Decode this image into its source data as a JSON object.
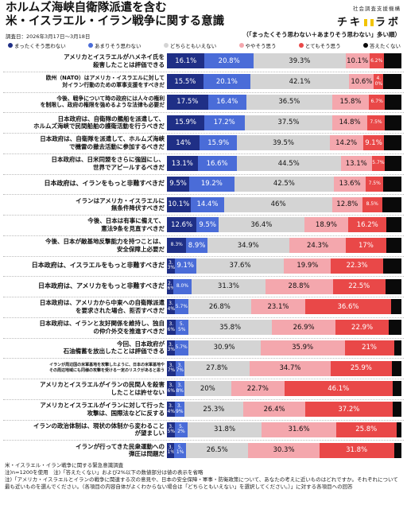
{
  "header": {
    "title_lines": [
      "ホルムズ海峡自衛隊派遣を含む",
      "米・イスラエル・イラン戦争に関する意識"
    ],
    "date": "調査日：2026年3月17日〜3月18日",
    "org": "社会調査支援機構",
    "brand_left": "チキ",
    "brand_right": "ラボ",
    "sort_note": "（「まったくそう思わない＋あまりそう思わない」多い順）"
  },
  "colors": {
    "strongly_disagree": "#1f2f86",
    "somewhat_disagree": "#4a6cd8",
    "neutral": "#d4d4d4",
    "somewhat_agree": "#f4a7ad",
    "strongly_agree": "#e94848",
    "no_answer": "#0a0a0a"
  },
  "chart_data": {
    "type": "bar",
    "orientation": "horizontal",
    "stacked": true,
    "legend": [
      "まったくそう思わない",
      "あまりそう思わない",
      "どちらともいえない",
      "ややそう思う",
      "とてもそう思う",
      "答えたくない"
    ],
    "categories": [
      [
        "アメリカとイスラエルがハメネイ氏を",
        "殺害したことは評価できる"
      ],
      [
        "欧州（NATO）はアメリカ・イスラエルに対して",
        "対イラン行動のための軍事支援をすべきだ"
      ],
      [
        "今後、戦争について時の政府には人々の権利",
        "を制限し、政府の権限を強めるような法律も必要だ"
      ],
      [
        "日本政府は、自衛隊の艦船を派遣して、",
        "ホルムズ海峡で民間船舶の護衛活動を行うべきだ"
      ],
      [
        "日本政府は、自衛隊を派遣して、ホルムズ海峡",
        "で機雷の撤去活動に参加するべきだ"
      ],
      [
        "日本政府は、日米同盟をさらに強固にし、",
        "世界でアピールするべきだ"
      ],
      [
        "日本政府は、イランをもっと非難すべきだ"
      ],
      [
        "イランはアメリカ・イスラエルに",
        "無条件降伏すべきだ"
      ],
      [
        "今後、日本は有事に備えて、",
        "憲法9条を見直すべきだ"
      ],
      [
        "今後、日本が敵基地反撃能力を持つことは、",
        "安全保障上必要だ"
      ],
      [
        "日本政府は、イスラエルをもっと非難すべきだ"
      ],
      [
        "日本政府は、アメリカをもっと非難すべきだ"
      ],
      [
        "日本政府は、アメリカから中東への自衛隊派遣",
        "を要求された場合、拒否すべきだ"
      ],
      [
        "日本政府は、イランと友好関係を維持し、独自",
        "の仲介外交を推進すべきだ"
      ],
      [
        "今回、日本政府が",
        "石油備蓄を放出したことは評価できる"
      ],
      [
        "イランが周辺国の米軍基地を攻撃したように、日本の米軍基地や",
        "その周辺地域にも同様の攻撃を受ける一定のリスクがあると思う"
      ],
      [
        "アメリカとイスラエルがイランの民間人を殺害",
        "したことは許せない"
      ],
      [
        "アメリカとイスラエルがイランに対して行った",
        "攻撃は、国際法などに反する"
      ],
      [
        "イランの政治体制は、現状の体制から変わること",
        "が望ましい"
      ],
      [
        "イランが行ってきた民衆運動への",
        "弾圧は問題だ"
      ]
    ],
    "series": [
      {
        "name": "まったくそう思わない",
        "values": [
          16.1,
          15.5,
          17.5,
          15.9,
          14.0,
          13.1,
          9.5,
          10.1,
          12.6,
          8.3,
          3.3,
          2.6,
          3.4,
          3.6,
          3.3,
          3.7,
          3.6,
          3.4,
          3.5,
          3.1
        ]
      },
      {
        "name": "あまりそう思わない",
        "values": [
          20.8,
          20.1,
          16.4,
          17.2,
          15.9,
          16.6,
          19.2,
          14.4,
          9.5,
          8.9,
          9.1,
          8.0,
          5.7,
          5.5,
          5.7,
          3.7,
          3.8,
          3.9,
          5.2,
          5.1
        ]
      },
      {
        "name": "どちらともいえない",
        "values": [
          39.3,
          42.1,
          36.5,
          37.5,
          39.5,
          44.5,
          42.5,
          46.0,
          36.4,
          34.9,
          37.6,
          31.3,
          26.8,
          35.8,
          30.9,
          27.8,
          20.0,
          25.3,
          31.8,
          26.5
        ]
      },
      {
        "name": "ややそう思う",
        "values": [
          10.1,
          10.6,
          15.8,
          14.8,
          14.2,
          13.1,
          13.6,
          12.8,
          18.9,
          24.3,
          19.9,
          28.8,
          23.1,
          26.9,
          35.9,
          34.7,
          22.7,
          26.4,
          31.6,
          30.3
        ]
      },
      {
        "name": "とてもそう思う",
        "values": [
          6.2,
          4.0,
          6.7,
          7.5,
          9.1,
          5.7,
          7.5,
          8.5,
          16.2,
          17.0,
          22.3,
          22.5,
          36.6,
          22.9,
          21.0,
          25.9,
          46.1,
          37.2,
          25.8,
          31.8
        ]
      },
      {
        "name": "答えたくない",
        "values": [
          7.5,
          7.7,
          7.1,
          7.1,
          7.3,
          7.0,
          7.7,
          8.2,
          6.4,
          6.6,
          7.8,
          6.8,
          4.4,
          5.3,
          3.2,
          4.2,
          3.8,
          3.8,
          2.1,
          3.2
        ]
      }
    ],
    "value_labels": [
      [
        "16.1%",
        "20.8%",
        "39.3%",
        "10.1%",
        "6.2%",
        ""
      ],
      [
        "15.5%",
        "20.1%",
        "42.1%",
        "10.6%",
        "4.0%",
        ""
      ],
      [
        "17.5%",
        "16.4%",
        "36.5%",
        "15.8%",
        "6.7%",
        ""
      ],
      [
        "15.9%",
        "17.2%",
        "37.5%",
        "14.8%",
        "7.5%",
        ""
      ],
      [
        "14%",
        "15.9%",
        "39.5%",
        "14.2%",
        "9.1%",
        ""
      ],
      [
        "13.1%",
        "16.6%",
        "44.5%",
        "13.1%",
        "5.7%",
        ""
      ],
      [
        "9.5%",
        "19.2%",
        "42.5%",
        "13.6%",
        "7.5%",
        ""
      ],
      [
        "10.1%",
        "14.4%",
        "46%",
        "12.8%",
        "8.5%",
        ""
      ],
      [
        "12.6%",
        "9.5%",
        "36.4%",
        "18.9%",
        "16.2%",
        ""
      ],
      [
        "8.3%",
        "8.9%",
        "34.9%",
        "24.3%",
        "17%",
        ""
      ],
      [
        "3.3%",
        "9.1%",
        "37.6%",
        "19.9%",
        "22.3%",
        ""
      ],
      [
        "2.6%",
        "8.0%",
        "31.3%",
        "28.8%",
        "22.5%",
        ""
      ],
      [
        "3.4%",
        "5.7%",
        "26.8%",
        "23.1%",
        "36.6%",
        ""
      ],
      [
        "3.6%",
        "5.5%",
        "35.8%",
        "26.9%",
        "22.9%",
        ""
      ],
      [
        "3.3%",
        "5.7%",
        "30.9%",
        "35.9%",
        "21%",
        ""
      ],
      [
        "3.7%",
        "3.7%",
        "27.8%",
        "34.7%",
        "25.9%",
        ""
      ],
      [
        "3.6%",
        "3.8%",
        "20%",
        "22.7%",
        "46.1%",
        ""
      ],
      [
        "3.4%",
        "3.9%",
        "25.3%",
        "26.4%",
        "37.2%",
        ""
      ],
      [
        "3.5%",
        "5.2%",
        "31.8%",
        "31.6%",
        "25.8%",
        ""
      ],
      [
        "3.1%",
        "5.1%",
        "26.5%",
        "30.3%",
        "31.8%",
        ""
      ]
    ],
    "xlim": [
      0,
      100
    ]
  },
  "notes": [
    "米・イスラエル・イラン戦争に関する緊急意識調査",
    "注)n=1200を使用　注)「答えたくない」および2%以下の数値部分は値の表示を省略",
    "注)「アメリカ・イスラエルとイランの戦争に関連する次の意見や、日本の安全保障・軍事・防衛政策について、あなたの考えに近いものはどれですか。それぞれについて",
    "最も近いものを選んでください。（各項目の内容自体がよくわからない場合は「どちらともいえない」を選択してください。）」に対する各項目への回答"
  ]
}
